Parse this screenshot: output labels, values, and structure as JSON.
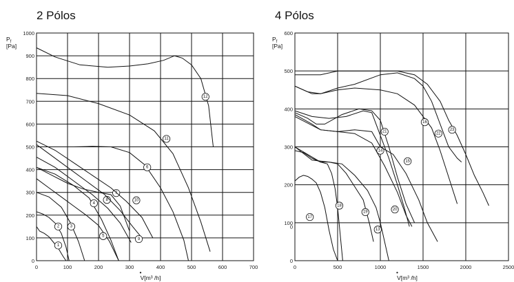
{
  "chart_data": [
    {
      "type": "line",
      "title": "2 Pólos",
      "ylabel": "P",
      "ylabel_sub": "f",
      "yunit": "[Pa]",
      "xlabel_accent": "•",
      "xlabel": "V[m³ /h]",
      "xlim": [
        0,
        700
      ],
      "ylim": [
        0,
        1000
      ],
      "xticks": [
        "0",
        "100",
        "200",
        "300",
        "400",
        "500",
        "600",
        "700"
      ],
      "yticks": [
        "0",
        "100",
        "200",
        "300",
        "400",
        "500",
        "600",
        "700",
        "800",
        "900",
        "1000"
      ],
      "grid": true,
      "series": [
        {
          "name": "1",
          "label_at": [
            70,
            67
          ],
          "x": [
            0,
            10,
            25,
            40,
            55,
            70,
            85,
            95
          ],
          "y": [
            150,
            130,
            120,
            105,
            80,
            55,
            20,
            0
          ]
        },
        {
          "name": "2",
          "label_at": [
            70,
            150
          ],
          "x": [
            0,
            20,
            40,
            60,
            80,
            95,
            105
          ],
          "y": [
            215,
            205,
            190,
            165,
            120,
            60,
            0
          ]
        },
        {
          "name": "3",
          "label_at": [
            112,
            150
          ],
          "x": [
            0,
            40,
            80,
            110,
            135,
            155
          ],
          "y": [
            300,
            280,
            235,
            165,
            85,
            0
          ]
        },
        {
          "name": "4",
          "label_at": [
            185,
            252
          ],
          "x": [
            0,
            60,
            120,
            170,
            210,
            240,
            265
          ],
          "y": [
            410,
            380,
            330,
            275,
            180,
            90,
            0
          ]
        },
        {
          "name": "5",
          "label_at": [
            215,
            108
          ],
          "x": [
            0,
            40,
            80,
            120,
            160,
            200,
            235,
            265
          ],
          "y": [
            360,
            320,
            280,
            240,
            200,
            155,
            85,
            0
          ]
        },
        {
          "name": "6",
          "label_at": [
            357,
            410
          ],
          "x": [
            0,
            60,
            120,
            180,
            240,
            300,
            350,
            400,
            440,
            475,
            490
          ],
          "y": [
            500,
            500,
            500,
            502,
            500,
            475,
            420,
            320,
            215,
            90,
            0
          ]
        },
        {
          "name": "7",
          "label_at": [
            257,
            297
          ],
          "x": [
            0,
            50,
            100,
            150,
            200,
            240,
            270,
            300
          ],
          "y": [
            410,
            375,
            340,
            315,
            300,
            290,
            240,
            130
          ]
        },
        {
          "name": "8",
          "label_at": [
            227,
            267
          ],
          "x": [
            0,
            60,
            120,
            180,
            230,
            270,
            305
          ],
          "y": [
            455,
            410,
            350,
            290,
            230,
            165,
            80
          ]
        },
        {
          "name": "9",
          "label_at": [
            330,
            95
          ],
          "x": [
            0,
            80,
            160,
            220,
            270,
            310,
            340
          ],
          "y": [
            510,
            430,
            350,
            290,
            220,
            150,
            100
          ]
        },
        {
          "name": "10",
          "label_at": [
            322,
            265
          ],
          "x": [
            0,
            60,
            120,
            180,
            240,
            290,
            340,
            375
          ],
          "y": [
            525,
            485,
            430,
            375,
            320,
            260,
            190,
            100
          ]
        },
        {
          "name": "11",
          "label_at": [
            419,
            535
          ],
          "x": [
            0,
            100,
            200,
            300,
            380,
            440,
            490,
            530,
            560
          ],
          "y": [
            735,
            725,
            690,
            640,
            570,
            470,
            320,
            170,
            40
          ]
        },
        {
          "name": "12",
          "label_at": [
            545,
            720
          ],
          "x": [
            0,
            60,
            140,
            230,
            300,
            360,
            410,
            445,
            470,
            500,
            530,
            555,
            570
          ],
          "y": [
            935,
            895,
            860,
            850,
            855,
            865,
            880,
            900,
            890,
            860,
            800,
            680,
            500
          ]
        }
      ]
    },
    {
      "type": "line",
      "title": "4 Pólos",
      "ylabel": "P",
      "ylabel_sub": "f",
      "yunit": "[Pa]",
      "xlabel_accent": "•",
      "xlabel": "V[m³ /h]",
      "xlim": [
        0,
        2500
      ],
      "ylim": [
        0,
        600
      ],
      "xticks": [
        "0",
        "500",
        "1000",
        "1500",
        "2000",
        "2500"
      ],
      "yticks": [
        "0",
        "100",
        "200",
        "300",
        "400",
        "500",
        "600"
      ],
      "y_extra_labels": [
        {
          "text": "0",
          "at": 90
        }
      ],
      "grid": true,
      "series": [
        {
          "name": "13",
          "label_at": [
            970,
            82
          ],
          "x": [
            0,
            300,
            400,
            550,
            700,
            850,
            950,
            1000,
            1050,
            1100
          ],
          "y": [
            300,
            260,
            260,
            255,
            225,
            185,
            140,
            100,
            50,
            0
          ]
        },
        {
          "name": "14",
          "label_at": [
            1000,
            290
          ],
          "x": [
            0,
            300,
            500,
            700,
            900,
            1050,
            1200,
            1300,
            1370
          ],
          "y": [
            380,
            345,
            340,
            335,
            310,
            250,
            180,
            120,
            90
          ]
        },
        {
          "name": "15",
          "label_at": [
            1320,
            262
          ],
          "x": [
            0,
            200,
            300,
            500,
            700,
            900,
            1000,
            1150,
            1300,
            1450,
            1550,
            1670
          ],
          "y": [
            385,
            360,
            345,
            340,
            345,
            340,
            300,
            280,
            230,
            160,
            100,
            50
          ]
        },
        {
          "name": "16",
          "label_at": [
            1520,
            365
          ],
          "x": [
            0,
            100,
            200,
            300,
            500,
            700,
            1000,
            1200,
            1400,
            1600,
            1700,
            1800,
            1900
          ],
          "y": [
            460,
            450,
            440,
            440,
            450,
            455,
            450,
            440,
            410,
            350,
            290,
            220,
            150
          ]
        },
        {
          "name": "17",
          "label_at": [
            175,
            115
          ],
          "x": [
            0,
            50,
            100,
            150,
            200,
            250,
            300,
            350,
            400,
            450,
            500
          ],
          "y": [
            210,
            220,
            225,
            222,
            215,
            205,
            180,
            140,
            80,
            30,
            0
          ]
        },
        {
          "name": "18",
          "label_at": [
            520,
            145
          ],
          "x": [
            0,
            100,
            200,
            300,
            380,
            430,
            470,
            500,
            530,
            560
          ],
          "y": [
            290,
            285,
            270,
            260,
            255,
            230,
            190,
            140,
            70,
            0
          ]
        },
        {
          "name": "19",
          "label_at": [
            825,
            128
          ],
          "x": [
            0,
            200,
            400,
            500,
            600,
            700,
            800,
            870,
            920
          ],
          "y": [
            300,
            265,
            260,
            255,
            230,
            195,
            160,
            100,
            50
          ]
        },
        {
          "name": "20",
          "label_at": [
            1170,
            135
          ],
          "x": [
            0,
            200,
            400,
            600,
            800,
            900,
            1000,
            1100,
            1200,
            1280,
            1340
          ],
          "y": [
            395,
            380,
            375,
            380,
            395,
            390,
            330,
            270,
            200,
            140,
            90
          ]
        },
        {
          "name": "21",
          "label_at": [
            1050,
            340
          ],
          "x": [
            0,
            150,
            250,
            350,
            550,
            750,
            900,
            1000,
            1100,
            1200,
            1300,
            1400
          ],
          "y": [
            390,
            375,
            360,
            360,
            385,
            400,
            395,
            370,
            300,
            220,
            150,
            100
          ]
        },
        {
          "name": "22",
          "label_at": [
            1680,
            335
          ],
          "x": [
            0,
            150,
            300,
            500,
            700,
            1000,
            1200,
            1400,
            1500,
            1600,
            1700,
            1800,
            1900,
            1950
          ],
          "y": [
            460,
            445,
            440,
            455,
            465,
            490,
            495,
            480,
            460,
            420,
            360,
            300,
            270,
            260
          ]
        },
        {
          "name": "23",
          "label_at": [
            1840,
            345
          ],
          "x": [
            0,
            300,
            500,
            700,
            1000,
            1200,
            1400,
            1550,
            1700,
            1800,
            1900,
            2000,
            2100,
            2200,
            2270
          ],
          "y": [
            490,
            490,
            500,
            500,
            500,
            500,
            490,
            465,
            420,
            370,
            330,
            280,
            225,
            180,
            145
          ]
        }
      ]
    }
  ]
}
